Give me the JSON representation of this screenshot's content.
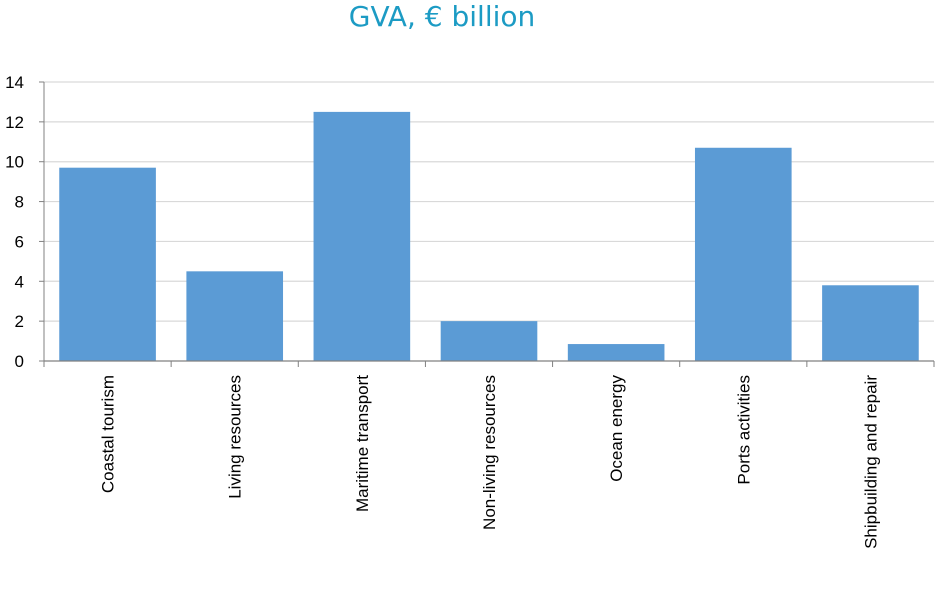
{
  "chart_data": {
    "type": "bar",
    "title": "GVA, € billion",
    "categories": [
      "Coastal tourism",
      "Living resources",
      "Maritime transport",
      "Non-living resources",
      "Ocean energy",
      "Ports activities",
      "Shipbuilding and repair"
    ],
    "values": [
      9.7,
      4.5,
      12.5,
      2.0,
      0.85,
      10.7,
      3.8
    ],
    "ylim": [
      0,
      14
    ],
    "yticks": [
      0,
      2,
      4,
      6,
      8,
      10,
      12,
      14
    ],
    "grid": true,
    "bar_color": "#5b9bd5",
    "grid_color": "#d9d9d9",
    "title_color": "#1c9bc4"
  }
}
